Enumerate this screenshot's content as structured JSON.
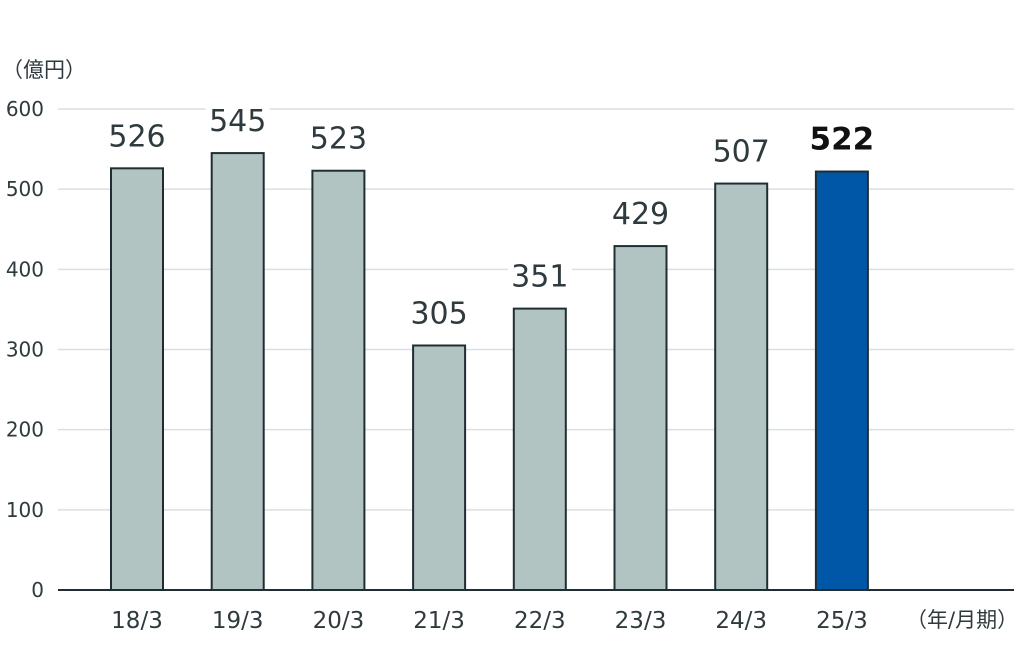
{
  "chart_data": {
    "type": "bar",
    "y_unit": "（億円）",
    "x_unit": "（年/月期）",
    "categories": [
      "18/3",
      "19/3",
      "20/3",
      "21/3",
      "22/3",
      "23/3",
      "24/3",
      "25/3"
    ],
    "values": [
      526,
      545,
      523,
      305,
      351,
      429,
      507,
      522
    ],
    "value_labels": [
      "526",
      "545",
      "523",
      "305",
      "351",
      "429",
      "507",
      "522"
    ],
    "highlight_index": 7,
    "ylim": [
      0,
      600
    ],
    "yticks": [
      0,
      100,
      200,
      300,
      400,
      500,
      600
    ],
    "grid": true,
    "colors": {
      "bar": "#b2c4c2",
      "bar_highlight": "#0057a8",
      "bar_stroke": "#1f2e33",
      "grid": "#d9e0e2",
      "text": "#2e3a3d",
      "axis": "#1f2e33"
    }
  }
}
